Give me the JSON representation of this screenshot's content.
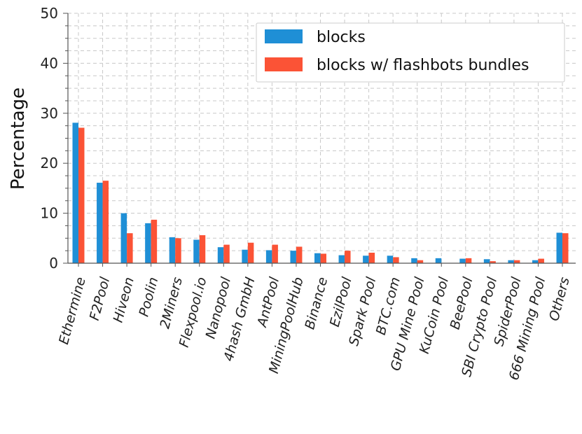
{
  "chart_data": {
    "type": "bar",
    "ylabel": "Percentage",
    "xlabel": "",
    "ylim": [
      0,
      50
    ],
    "yticks": [
      0,
      10,
      20,
      30,
      40,
      50
    ],
    "grid": true,
    "legend_position": "top-right",
    "categories": [
      "Ethermine",
      "F2Pool",
      "Hiveon",
      "Poolin",
      "2Miners",
      "Flexpool.io",
      "Nanopool",
      "4hash GmbH",
      "AntPool",
      "MiningPoolHub",
      "Binance",
      "EzilPool",
      "Spark Pool",
      "BTC.com",
      "GPU Mine Pool",
      "KuCoin Pool",
      "BeePool",
      "SBI Crypto Pool",
      "SpiderPool",
      "666 Mining Pool",
      "Others"
    ],
    "series": [
      {
        "name": "blocks",
        "color": "#1f8fd6",
        "values": [
          28.1,
          16.1,
          10.0,
          8.0,
          5.2,
          4.7,
          3.2,
          2.7,
          2.6,
          2.5,
          2.0,
          1.6,
          1.5,
          1.5,
          1.0,
          1.0,
          0.9,
          0.8,
          0.6,
          0.6,
          6.1
        ]
      },
      {
        "name": "blocks w/ flashbots bundles",
        "color": "#fb5336",
        "values": [
          27.1,
          16.5,
          6.0,
          8.7,
          5.0,
          5.6,
          3.7,
          4.1,
          3.7,
          3.3,
          1.9,
          2.5,
          2.1,
          1.2,
          0.6,
          0.0,
          1.0,
          0.4,
          0.6,
          0.9,
          6.0
        ]
      }
    ]
  }
}
